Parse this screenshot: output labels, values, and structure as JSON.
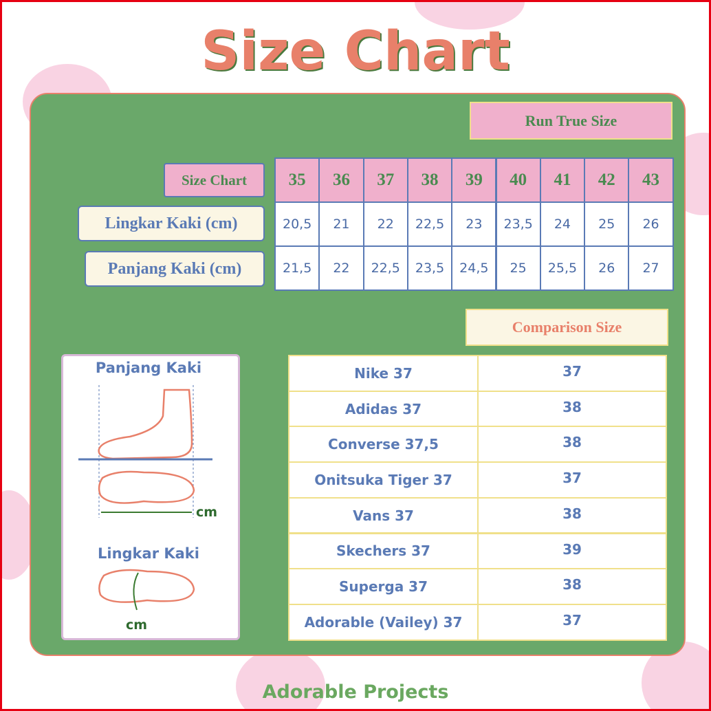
{
  "header": {
    "title": "Size Chart"
  },
  "size_chart": {
    "badge": "Run True Size",
    "header_label": "Size Chart",
    "sizes": [
      35,
      36,
      37,
      38,
      39,
      40,
      41,
      42,
      43
    ],
    "rows": [
      {
        "label": "Lingkar Kaki (cm)",
        "values": [
          "20,5",
          "21",
          "22",
          "22,5",
          "23",
          "23,5",
          "24",
          "25",
          "26"
        ]
      },
      {
        "label": "Panjang Kaki (cm)",
        "values": [
          "21,5",
          "22",
          "22,5",
          "23,5",
          "24,5",
          "25",
          "25,5",
          "26",
          "27"
        ]
      }
    ]
  },
  "guide": {
    "length_title": "Panjang Kaki",
    "length_unit": "cm",
    "girth_title": "Lingkar Kaki",
    "girth_unit": "cm"
  },
  "comparison": {
    "badge": "Comparison Size",
    "rows": [
      [
        "Nike 37",
        "37"
      ],
      [
        "Adidas 37",
        "38"
      ],
      [
        "Converse 37,5",
        "38"
      ],
      [
        "Onitsuka Tiger 37",
        "37"
      ],
      [
        "Vans 37",
        "38"
      ],
      [
        "Skechers 37",
        "39"
      ],
      [
        "Superga 37",
        "38"
      ],
      [
        "Adorable (Vailey) 37",
        "37"
      ]
    ]
  },
  "footer": {
    "brand": "Adorable Projects"
  }
}
